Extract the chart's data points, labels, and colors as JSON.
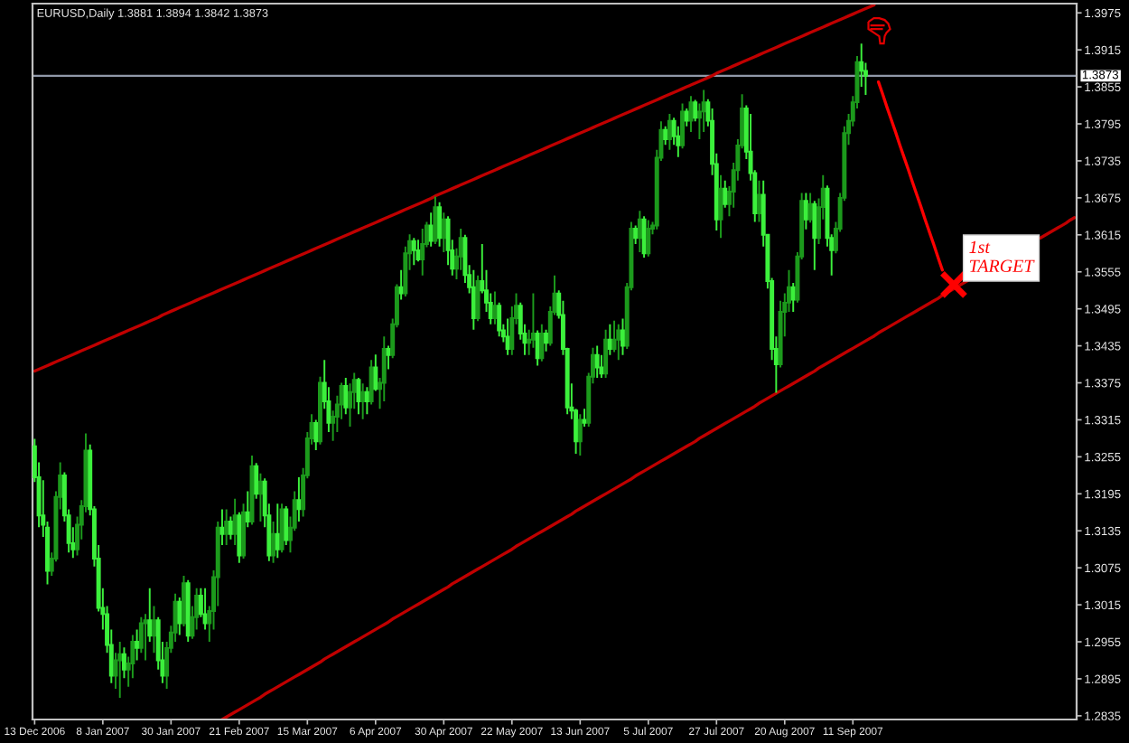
{
  "chart_data": {
    "type": "candlestick",
    "title": "EURUSD,Daily 1.3881 1.3894 1.3842 1.3873",
    "categories": [
      "13 Dec 2006",
      null,
      null,
      null,
      null,
      null,
      null,
      null,
      null,
      null,
      null,
      null,
      null,
      null,
      null,
      null,
      "8 Jan 2007",
      null,
      null,
      null,
      null,
      null,
      null,
      null,
      null,
      null,
      null,
      null,
      null,
      null,
      null,
      null,
      "30 Jan 2007",
      null,
      null,
      null,
      null,
      null,
      null,
      null,
      null,
      null,
      null,
      null,
      null,
      null,
      null,
      null,
      "21 Feb 2007",
      null,
      null,
      null,
      null,
      null,
      null,
      null,
      null,
      null,
      null,
      null,
      null,
      null,
      null,
      null,
      "15 Mar 2007",
      null,
      null,
      null,
      null,
      null,
      null,
      null,
      null,
      null,
      null,
      null,
      null,
      null,
      null,
      null,
      "6 Apr 2007",
      null,
      null,
      null,
      null,
      null,
      null,
      null,
      null,
      null,
      null,
      null,
      null,
      null,
      null,
      null,
      "30 Apr 2007",
      null,
      null,
      null,
      null,
      null,
      null,
      null,
      null,
      null,
      null,
      null,
      null,
      null,
      null,
      null,
      "22 May 2007",
      null,
      null,
      null,
      null,
      null,
      null,
      null,
      null,
      null,
      null,
      null,
      null,
      null,
      null,
      null,
      "13 Jun 2007",
      null,
      null,
      null,
      null,
      null,
      null,
      null,
      null,
      null,
      null,
      null,
      null,
      null,
      null,
      null,
      "5 Jul 2007",
      null,
      null,
      null,
      null,
      null,
      null,
      null,
      null,
      null,
      null,
      null,
      null,
      null,
      null,
      null,
      "27 Jul 2007",
      null,
      null,
      null,
      null,
      null,
      null,
      null,
      null,
      null,
      null,
      null,
      null,
      null,
      null,
      null,
      "20 Aug 2007",
      null,
      null,
      null,
      null,
      null,
      null,
      null,
      null,
      null,
      null,
      null,
      null,
      null,
      null,
      null,
      "11 Sep 2007",
      null,
      null,
      null,
      null,
      null,
      null,
      null,
      null,
      null,
      null,
      null,
      null,
      null,
      null,
      null,
      null,
      null,
      null,
      null,
      null,
      null,
      null,
      null,
      null,
      null,
      null,
      null,
      null,
      null,
      null,
      null,
      null,
      null,
      null,
      null,
      null,
      null,
      null,
      null,
      null,
      null,
      null,
      null,
      null,
      null,
      null,
      null,
      null,
      null,
      null,
      null,
      null
    ],
    "ohlc": [
      [
        1.3272,
        1.3284,
        1.3214,
        1.3222
      ],
      [
        1.3222,
        1.3246,
        1.3141,
        1.316
      ],
      [
        1.316,
        1.3217,
        1.3125,
        1.3145
      ],
      [
        1.314,
        1.315,
        1.3048,
        1.307
      ],
      [
        1.307,
        1.31,
        1.3062,
        1.309
      ],
      [
        1.309,
        1.3199,
        1.3085,
        1.319
      ],
      [
        1.319,
        1.3246,
        1.317,
        1.3225
      ],
      [
        1.3225,
        1.323,
        1.315,
        1.316
      ],
      [
        1.316,
        1.317,
        1.31,
        1.3115
      ],
      [
        1.3115,
        1.3141,
        1.3091,
        1.3105
      ],
      [
        1.3105,
        1.3158,
        1.3095,
        1.3145
      ],
      [
        1.3145,
        1.3185,
        1.3121,
        1.3175
      ],
      [
        1.3175,
        1.3293,
        1.3165,
        1.3265
      ],
      [
        1.3265,
        1.3275,
        1.316,
        1.317
      ],
      [
        1.317,
        1.3175,
        1.3077,
        1.309
      ],
      [
        1.309,
        1.3112,
        1.3004,
        1.301
      ],
      [
        1.301,
        1.3042,
        1.2975,
        1.3
      ],
      [
        1.3,
        1.3013,
        1.2937,
        1.295
      ],
      [
        1.295,
        1.2975,
        1.2888,
        1.29
      ],
      [
        1.29,
        1.2937,
        1.2879,
        1.2925
      ],
      [
        1.2925,
        1.2955,
        1.2864,
        1.2935
      ],
      [
        1.2935,
        1.2946,
        1.2896,
        1.291
      ],
      [
        1.291,
        1.2931,
        1.2882,
        1.292
      ],
      [
        1.292,
        1.2966,
        1.2896,
        1.2955
      ],
      [
        1.2955,
        1.2975,
        1.2925,
        1.2945
      ],
      [
        1.2945,
        1.2995,
        1.2937,
        1.2985
      ],
      [
        1.2985,
        1.3,
        1.2925,
        1.299
      ],
      [
        1.299,
        1.3042,
        1.2955,
        1.2965
      ],
      [
        1.2965,
        1.3013,
        1.2937,
        1.299
      ],
      [
        1.299,
        1.2995,
        1.291,
        1.2925
      ],
      [
        1.2925,
        1.2955,
        1.2888,
        1.29
      ],
      [
        1.29,
        1.2955,
        1.2879,
        1.2945
      ],
      [
        1.2945,
        1.2981,
        1.2937,
        1.297
      ],
      [
        1.297,
        1.3033,
        1.2955,
        1.302
      ],
      [
        1.302,
        1.3027,
        1.2966,
        1.2985
      ],
      [
        1.2985,
        1.3062,
        1.298,
        1.305
      ],
      [
        1.305,
        1.3055,
        1.2955,
        1.2965
      ],
      [
        1.2965,
        1.3013,
        1.296,
        1.2995
      ],
      [
        1.2995,
        1.3042,
        1.2975,
        1.303
      ],
      [
        1.303,
        1.3042,
        1.2995,
        1.3
      ],
      [
        1.3,
        1.3042,
        1.2975,
        1.2985
      ],
      [
        1.2985,
        1.3013,
        1.2955,
        1.3005
      ],
      [
        1.3005,
        1.3071,
        1.2975,
        1.306
      ],
      [
        1.306,
        1.315,
        1.3013,
        1.314
      ],
      [
        1.314,
        1.317,
        1.3112,
        1.313
      ],
      [
        1.313,
        1.317,
        1.3112,
        1.315
      ],
      [
        1.315,
        1.3158,
        1.3121,
        1.313
      ],
      [
        1.313,
        1.3187,
        1.3112,
        1.316
      ],
      [
        1.316,
        1.3165,
        1.3083,
        1.3095
      ],
      [
        1.3095,
        1.3179,
        1.309,
        1.3165
      ],
      [
        1.3165,
        1.3199,
        1.3141,
        1.315
      ],
      [
        1.315,
        1.3257,
        1.3145,
        1.324
      ],
      [
        1.324,
        1.3245,
        1.3187,
        1.3195
      ],
      [
        1.3195,
        1.3228,
        1.315,
        1.3215
      ],
      [
        1.3215,
        1.322,
        1.3141,
        1.316
      ],
      [
        1.316,
        1.3179,
        1.3086,
        1.3095
      ],
      [
        1.3095,
        1.315,
        1.3083,
        1.313
      ],
      [
        1.313,
        1.3179,
        1.3091,
        1.3105
      ],
      [
        1.3105,
        1.3179,
        1.31,
        1.317
      ],
      [
        1.317,
        1.3175,
        1.3112,
        1.312
      ],
      [
        1.312,
        1.3158,
        1.31,
        1.314
      ],
      [
        1.314,
        1.3199,
        1.3135,
        1.3185
      ],
      [
        1.3185,
        1.3222,
        1.315,
        1.317
      ],
      [
        1.317,
        1.3237,
        1.3158,
        1.3225
      ],
      [
        1.3225,
        1.3295,
        1.322,
        1.3285
      ],
      [
        1.3285,
        1.3324,
        1.3275,
        1.331
      ],
      [
        1.331,
        1.3315,
        1.3266,
        1.328
      ],
      [
        1.328,
        1.3385,
        1.3275,
        1.3375
      ],
      [
        1.3375,
        1.3412,
        1.3333,
        1.3345
      ],
      [
        1.3345,
        1.3368,
        1.3295,
        1.331
      ],
      [
        1.331,
        1.333,
        1.3281,
        1.332
      ],
      [
        1.332,
        1.3354,
        1.3295,
        1.334
      ],
      [
        1.334,
        1.3375,
        1.3316,
        1.337
      ],
      [
        1.337,
        1.3383,
        1.3324,
        1.3335
      ],
      [
        1.3335,
        1.3374,
        1.3304,
        1.336
      ],
      [
        1.336,
        1.3391,
        1.3333,
        1.338
      ],
      [
        1.338,
        1.3383,
        1.3324,
        1.3345
      ],
      [
        1.3345,
        1.3374,
        1.3316,
        1.336
      ],
      [
        1.336,
        1.3368,
        1.3324,
        1.3345
      ],
      [
        1.3345,
        1.3412,
        1.334,
        1.34
      ],
      [
        1.34,
        1.3421,
        1.3362,
        1.3365
      ],
      [
        1.3365,
        1.3383,
        1.3333,
        1.3375
      ],
      [
        1.3375,
        1.345,
        1.3345,
        1.343
      ],
      [
        1.343,
        1.3435,
        1.3397,
        1.342
      ],
      [
        1.342,
        1.3479,
        1.3415,
        1.347
      ],
      [
        1.347,
        1.3535,
        1.3465,
        1.353
      ],
      [
        1.353,
        1.3558,
        1.351,
        1.352
      ],
      [
        1.352,
        1.3596,
        1.3515,
        1.3585
      ],
      [
        1.3585,
        1.3616,
        1.3558,
        1.3605
      ],
      [
        1.3605,
        1.361,
        1.3566,
        1.359
      ],
      [
        1.359,
        1.3607,
        1.3572,
        1.3575
      ],
      [
        1.3575,
        1.3625,
        1.3549,
        1.36
      ],
      [
        1.36,
        1.3636,
        1.3595,
        1.363
      ],
      [
        1.363,
        1.3651,
        1.3596,
        1.3605
      ],
      [
        1.3605,
        1.3677,
        1.36,
        1.366
      ],
      [
        1.366,
        1.3668,
        1.3596,
        1.361
      ],
      [
        1.361,
        1.3651,
        1.3587,
        1.364
      ],
      [
        1.364,
        1.3645,
        1.3566,
        1.359
      ],
      [
        1.359,
        1.3607,
        1.3549,
        1.356
      ],
      [
        1.356,
        1.3593,
        1.3543,
        1.358
      ],
      [
        1.358,
        1.3625,
        1.3558,
        1.361
      ],
      [
        1.361,
        1.3615,
        1.3537,
        1.355
      ],
      [
        1.355,
        1.3566,
        1.352,
        1.353
      ],
      [
        1.353,
        1.3558,
        1.3461,
        1.348
      ],
      [
        1.348,
        1.3549,
        1.3475,
        1.354
      ],
      [
        1.354,
        1.36,
        1.352,
        1.3525
      ],
      [
        1.3525,
        1.3558,
        1.349,
        1.3505
      ],
      [
        1.3505,
        1.352,
        1.347,
        1.348
      ],
      [
        1.348,
        1.3523,
        1.347,
        1.35
      ],
      [
        1.35,
        1.3505,
        1.345,
        1.346
      ],
      [
        1.346,
        1.347,
        1.3441,
        1.345
      ],
      [
        1.345,
        1.3479,
        1.342,
        1.343
      ],
      [
        1.343,
        1.3499,
        1.342,
        1.348
      ],
      [
        1.348,
        1.352,
        1.347,
        1.35
      ],
      [
        1.35,
        1.3505,
        1.3445,
        1.3455
      ],
      [
        1.3455,
        1.347,
        1.342,
        1.344
      ],
      [
        1.344,
        1.3461,
        1.342,
        1.3445
      ],
      [
        1.3445,
        1.352,
        1.3432,
        1.3455
      ],
      [
        1.3455,
        1.346,
        1.3403,
        1.3415
      ],
      [
        1.3415,
        1.347,
        1.341,
        1.3455
      ],
      [
        1.3455,
        1.3461,
        1.3426,
        1.344
      ],
      [
        1.344,
        1.3499,
        1.3435,
        1.349
      ],
      [
        1.349,
        1.3549,
        1.3485,
        1.352
      ],
      [
        1.352,
        1.3525,
        1.3479,
        1.3485
      ],
      [
        1.3485,
        1.3508,
        1.342,
        1.343
      ],
      [
        1.343,
        1.3432,
        1.3324,
        1.3335
      ],
      [
        1.3335,
        1.3374,
        1.3316,
        1.333
      ],
      [
        1.333,
        1.3333,
        1.326,
        1.328
      ],
      [
        1.328,
        1.3324,
        1.3257,
        1.3315
      ],
      [
        1.3315,
        1.3333,
        1.3304,
        1.331
      ],
      [
        1.331,
        1.3391,
        1.3304,
        1.3385
      ],
      [
        1.3385,
        1.3432,
        1.3374,
        1.342
      ],
      [
        1.342,
        1.3435,
        1.3383,
        1.34
      ],
      [
        1.34,
        1.342,
        1.3383,
        1.339
      ],
      [
        1.339,
        1.3461,
        1.3383,
        1.3445
      ],
      [
        1.3445,
        1.347,
        1.342,
        1.343
      ],
      [
        1.343,
        1.3476,
        1.3425,
        1.3445
      ],
      [
        1.3445,
        1.347,
        1.3412,
        1.346
      ],
      [
        1.346,
        1.3479,
        1.342,
        1.3435
      ],
      [
        1.3435,
        1.3537,
        1.343,
        1.353
      ],
      [
        1.353,
        1.3636,
        1.3525,
        1.3625
      ],
      [
        1.3625,
        1.363,
        1.36,
        1.361
      ],
      [
        1.361,
        1.3654,
        1.3587,
        1.364
      ],
      [
        1.364,
        1.3645,
        1.3578,
        1.3585
      ],
      [
        1.3585,
        1.3639,
        1.358,
        1.3625
      ],
      [
        1.3625,
        1.3636,
        1.3616,
        1.363
      ],
      [
        1.363,
        1.3753,
        1.3624,
        1.374
      ],
      [
        1.374,
        1.3799,
        1.3735,
        1.3785
      ],
      [
        1.3785,
        1.3791,
        1.3761,
        1.377
      ],
      [
        1.377,
        1.3811,
        1.3753,
        1.38
      ],
      [
        1.38,
        1.3805,
        1.3761,
        1.3775
      ],
      [
        1.3775,
        1.3791,
        1.3741,
        1.376
      ],
      [
        1.376,
        1.3828,
        1.3755,
        1.3815
      ],
      [
        1.3815,
        1.382,
        1.3791,
        1.38
      ],
      [
        1.38,
        1.384,
        1.3782,
        1.383
      ],
      [
        1.383,
        1.3834,
        1.3799,
        1.3805
      ],
      [
        1.3805,
        1.3828,
        1.377,
        1.3815
      ],
      [
        1.3815,
        1.385,
        1.3782,
        1.383
      ],
      [
        1.383,
        1.3835,
        1.3791,
        1.38
      ],
      [
        1.38,
        1.382,
        1.3712,
        1.373
      ],
      [
        1.373,
        1.3747,
        1.3622,
        1.364
      ],
      [
        1.364,
        1.3712,
        1.361,
        1.369
      ],
      [
        1.369,
        1.3703,
        1.3659,
        1.3665
      ],
      [
        1.3665,
        1.3694,
        1.3645,
        1.3685
      ],
      [
        1.3685,
        1.3732,
        1.3659,
        1.372
      ],
      [
        1.372,
        1.377,
        1.3703,
        1.376
      ],
      [
        1.376,
        1.3843,
        1.3755,
        1.382
      ],
      [
        1.382,
        1.3825,
        1.3738,
        1.375
      ],
      [
        1.375,
        1.3811,
        1.3703,
        1.3715
      ],
      [
        1.3715,
        1.372,
        1.3636,
        1.365
      ],
      [
        1.365,
        1.3703,
        1.3636,
        1.368
      ],
      [
        1.368,
        1.3703,
        1.3596,
        1.3615
      ],
      [
        1.3615,
        1.3616,
        1.3528,
        1.354
      ],
      [
        1.354,
        1.3545,
        1.3412,
        1.343
      ],
      [
        1.343,
        1.345,
        1.3359,
        1.3405
      ],
      [
        1.3405,
        1.3508,
        1.34,
        1.349
      ],
      [
        1.349,
        1.352,
        1.345,
        1.3505
      ],
      [
        1.3505,
        1.3558,
        1.349,
        1.353
      ],
      [
        1.353,
        1.3537,
        1.349,
        1.351
      ],
      [
        1.351,
        1.3587,
        1.3505,
        1.358
      ],
      [
        1.358,
        1.3683,
        1.3575,
        1.367
      ],
      [
        1.367,
        1.3683,
        1.3624,
        1.364
      ],
      [
        1.364,
        1.3683,
        1.3635,
        1.3665
      ],
      [
        1.3665,
        1.367,
        1.3558,
        1.361
      ],
      [
        1.361,
        1.3674,
        1.36,
        1.366
      ],
      [
        1.366,
        1.3712,
        1.364,
        1.369
      ],
      [
        1.369,
        1.3695,
        1.3596,
        1.361
      ],
      [
        1.361,
        1.3616,
        1.3549,
        1.359
      ],
      [
        1.359,
        1.3636,
        1.3585,
        1.3625
      ],
      [
        1.3625,
        1.3683,
        1.362,
        1.3675
      ],
      [
        1.3675,
        1.3791,
        1.367,
        1.378
      ],
      [
        1.378,
        1.3811,
        1.3761,
        1.38
      ],
      [
        1.38,
        1.384,
        1.3791,
        1.383
      ],
      [
        1.383,
        1.3905,
        1.382,
        1.3895
      ],
      [
        1.3895,
        1.3925,
        1.3855,
        1.3881
      ],
      [
        1.3881,
        1.3894,
        1.3842,
        1.3873
      ],
      null,
      null,
      null,
      null,
      null,
      null,
      null,
      null,
      null,
      null,
      null,
      null,
      null,
      null,
      null,
      null,
      null,
      null,
      null,
      null,
      null,
      null,
      null,
      null,
      null,
      null,
      null,
      null,
      null,
      null,
      null,
      null,
      null,
      null,
      null,
      null,
      null,
      null,
      null,
      null,
      null,
      null,
      null,
      null,
      null,
      null,
      null,
      null,
      null
    ],
    "colors": [
      "#3cf03c",
      "#3cf03c",
      "#3cf03c",
      "#3cf03c",
      "#1c9a1c",
      "#1c9a1c",
      "#1c9a1c",
      "#3cf03c",
      "#3cf03c",
      "#3cf03c",
      "#1c9a1c",
      "#1c9a1c",
      "#1c9a1c",
      "#3cf03c",
      "#3cf03c",
      "#3cf03c",
      "#3cf03c",
      "#3cf03c",
      "#3cf03c",
      "#1c9a1c",
      "#1c9a1c",
      "#3cf03c",
      "#1c9a1c",
      "#1c9a1c",
      "#3cf03c",
      "#1c9a1c",
      "#1c9a1c",
      "#3cf03c",
      "#1c9a1c",
      "#3cf03c",
      "#3cf03c",
      "#1c9a1c",
      "#1c9a1c",
      "#1c9a1c",
      "#3cf03c",
      "#1c9a1c",
      "#3cf03c",
      "#1c9a1c",
      "#1c9a1c",
      "#3cf03c",
      "#3cf03c",
      "#1c9a1c",
      "#1c9a1c",
      "#1c9a1c",
      "#3cf03c",
      "#1c9a1c",
      "#3cf03c",
      "#1c9a1c",
      "#3cf03c",
      "#1c9a1c",
      "#3cf03c",
      "#1c9a1c",
      "#3cf03c",
      "#1c9a1c",
      "#3cf03c",
      "#3cf03c",
      "#1c9a1c",
      "#3cf03c",
      "#1c9a1c",
      "#3cf03c",
      "#1c9a1c",
      "#1c9a1c",
      "#3cf03c",
      "#1c9a1c",
      "#1c9a1c",
      "#1c9a1c",
      "#3cf03c",
      "#1c9a1c",
      "#3cf03c",
      "#3cf03c",
      "#1c9a1c",
      "#1c9a1c",
      "#1c9a1c",
      "#3cf03c",
      "#1c9a1c",
      "#1c9a1c",
      "#3cf03c",
      "#1c9a1c",
      "#3cf03c",
      "#1c9a1c",
      "#3cf03c",
      "#1c9a1c",
      "#1c9a1c",
      "#3cf03c",
      "#1c9a1c",
      "#1c9a1c",
      "#3cf03c",
      "#1c9a1c",
      "#1c9a1c",
      "#3cf03c",
      "#3cf03c",
      "#1c9a1c",
      "#1c9a1c",
      "#3cf03c",
      "#1c9a1c",
      "#3cf03c",
      "#1c9a1c",
      "#3cf03c",
      "#3cf03c",
      "#1c9a1c",
      "#1c9a1c",
      "#3cf03c",
      "#3cf03c",
      "#3cf03c",
      "#1c9a1c",
      "#3cf03c",
      "#3cf03c",
      "#3cf03c",
      "#1c9a1c",
      "#3cf03c",
      "#3cf03c",
      "#3cf03c",
      "#1c9a1c",
      "#1c9a1c",
      "#3cf03c",
      "#3cf03c",
      "#1c9a1c",
      "#1c9a1c",
      "#3cf03c",
      "#1c9a1c",
      "#3cf03c",
      "#1c9a1c",
      "#1c9a1c",
      "#3cf03c",
      "#3cf03c",
      "#3cf03c",
      "#3cf03c",
      "#3cf03c",
      "#1c9a1c",
      "#3cf03c",
      "#1c9a1c",
      "#1c9a1c",
      "#3cf03c",
      "#3cf03c",
      "#1c9a1c",
      "#3cf03c",
      "#1c9a1c",
      "#1c9a1c",
      "#3cf03c",
      "#1c9a1c",
      "#1c9a1c",
      "#3cf03c",
      "#1c9a1c",
      "#3cf03c",
      "#1c9a1c",
      "#1c9a1c",
      "#1c9a1c",
      "#1c9a1c",
      "#3cf03c",
      "#1c9a1c",
      "#3cf03c",
      "#3cf03c",
      "#1c9a1c",
      "#3cf03c",
      "#1c9a1c",
      "#3cf03c",
      "#1c9a1c",
      "#1c9a1c",
      "#3cf03c",
      "#3cf03c",
      "#3cf03c",
      "#1c9a1c",
      "#3cf03c",
      "#1c9a1c",
      "#1c9a1c",
      "#1c9a1c",
      "#1c9a1c",
      "#3cf03c",
      "#3cf03c",
      "#3cf03c",
      "#1c9a1c",
      "#3cf03c",
      "#3cf03c",
      "#3cf03c",
      "#3cf03c",
      "#1c9a1c",
      "#1c9a1c",
      "#1c9a1c",
      "#3cf03c",
      "#1c9a1c",
      "#1c9a1c",
      "#3cf03c",
      "#1c9a1c",
      "#3cf03c",
      "#1c9a1c",
      "#1c9a1c",
      "#3cf03c",
      "#3cf03c",
      "#1c9a1c",
      "#1c9a1c",
      "#1c9a1c",
      "#1c9a1c",
      "#1c9a1c",
      "#1c9a1c",
      "#3cf03c",
      "#3cf03c",
      null,
      null,
      null,
      null,
      null,
      null,
      null,
      null,
      null,
      null,
      null,
      null,
      null,
      null,
      null,
      null,
      null,
      null,
      null,
      null,
      null,
      null,
      null,
      null,
      null,
      null,
      null,
      null,
      null,
      null,
      null,
      null,
      null,
      null,
      null,
      null,
      null,
      null,
      null,
      null,
      null,
      null,
      null,
      null,
      null,
      null,
      null,
      null,
      null
    ],
    "series": [
      {
        "type": "line",
        "color": "#c00000",
        "values": [
          1.3394,
          1.3397,
          1.34,
          1.3403,
          1.3406,
          1.3409,
          1.3412,
          1.3415,
          1.3418,
          1.3421,
          1.3424,
          1.3427,
          1.343,
          1.3433,
          1.3436,
          1.3439,
          1.3442,
          1.3445,
          1.3448,
          1.3451,
          1.3454,
          1.3457,
          1.346,
          1.3463,
          1.3466,
          1.3469,
          1.3472,
          1.3475,
          1.3478,
          1.3481,
          1.3485,
          1.3488,
          1.3491,
          1.3494,
          1.3497,
          1.35,
          1.3503,
          1.3506,
          1.3509,
          1.3512,
          1.3515,
          1.3518,
          1.3521,
          1.3524,
          1.3527,
          1.353,
          1.3533,
          1.3536,
          1.3539,
          1.3542,
          1.3545,
          1.3548,
          1.3551,
          1.3554,
          1.3557,
          1.356,
          1.3563,
          1.3566,
          1.3569,
          1.3572,
          1.3575,
          1.3578,
          1.3581,
          1.3584,
          1.3587,
          1.359,
          1.3593,
          1.3596,
          1.3599,
          1.3602,
          1.3605,
          1.3608,
          1.3611,
          1.3614,
          1.3617,
          1.362,
          1.3623,
          1.3626,
          1.3629,
          1.3632,
          1.3635,
          1.3638,
          1.3641,
          1.3644,
          1.3647,
          1.365,
          1.3653,
          1.3656,
          1.3659,
          1.3662,
          1.3665,
          1.3668,
          1.3671,
          1.3674,
          1.3678,
          1.3681,
          1.3684,
          1.3687,
          1.369,
          1.3693,
          1.3696,
          1.3699,
          1.3702,
          1.3705,
          1.3708,
          1.3711,
          1.3714,
          1.3717,
          1.372,
          1.3723,
          1.3726,
          1.3729,
          1.3732,
          1.3735,
          1.3738,
          1.3741,
          1.3744,
          1.3747,
          1.375,
          1.3753,
          1.3756,
          1.3759,
          1.3762,
          1.3765,
          1.3768,
          1.3771,
          1.3774,
          1.3777,
          1.378,
          1.3783,
          1.3786,
          1.3789,
          1.3792,
          1.3795,
          1.3798,
          1.3801,
          1.3804,
          1.3807,
          1.381,
          1.3813,
          1.3816,
          1.3819,
          1.3822,
          1.3825,
          1.3828,
          1.3831,
          1.3834,
          1.3837,
          1.384,
          1.3843,
          1.3846,
          1.3849,
          1.3852,
          1.3855,
          1.3858,
          1.3861,
          1.3864,
          1.3867,
          1.387,
          1.3873,
          1.3877,
          1.388,
          1.3883,
          1.3886,
          1.3889,
          1.3892,
          1.3895,
          1.3898,
          1.3901,
          1.3904,
          1.3907,
          1.391,
          1.3913,
          1.3916,
          1.3919,
          1.3922,
          1.3925,
          1.3928,
          1.3931,
          1.3934,
          1.3937,
          1.394,
          1.3943,
          1.3946,
          1.3949,
          1.3952,
          1.3955,
          1.3958,
          1.3961,
          1.3964,
          1.3967,
          1.397,
          1.3973,
          1.3976,
          1.3979,
          1.3982,
          1.3985,
          1.3988,
          null,
          null,
          null,
          null,
          null,
          null,
          null,
          null,
          null,
          null,
          null,
          null,
          null,
          null,
          null,
          null,
          null,
          null,
          null,
          null,
          null,
          null,
          null,
          null,
          null,
          null,
          null,
          null,
          null,
          null,
          null,
          null,
          null,
          null,
          null,
          null,
          null,
          null,
          null,
          null,
          null,
          null,
          null,
          null,
          null,
          null,
          null
        ]
      },
      {
        "type": "line",
        "color": "#c00000",
        "values": [
          null,
          null,
          null,
          null,
          null,
          null,
          null,
          null,
          null,
          null,
          null,
          null,
          null,
          null,
          null,
          null,
          null,
          null,
          null,
          null,
          null,
          null,
          null,
          null,
          null,
          null,
          null,
          null,
          null,
          null,
          null,
          null,
          null,
          null,
          null,
          null,
          null,
          null,
          null,
          null,
          null,
          null,
          null,
          null,
          1.2829,
          1.2833,
          1.2837,
          1.2841,
          1.2845,
          1.2849,
          1.2853,
          1.2857,
          1.2861,
          1.2865,
          1.287,
          1.2874,
          1.2878,
          1.2882,
          1.2886,
          1.289,
          1.2894,
          1.2898,
          1.2902,
          1.2906,
          1.291,
          1.2914,
          1.2918,
          1.2922,
          1.2927,
          1.2931,
          1.2935,
          1.2939,
          1.2943,
          1.2947,
          1.2951,
          1.2955,
          1.2959,
          1.2963,
          1.2967,
          1.2971,
          1.2975,
          1.2979,
          1.2983,
          1.2987,
          1.2992,
          1.2996,
          1.3,
          1.3004,
          1.3008,
          1.3012,
          1.3016,
          1.302,
          1.3024,
          1.3028,
          1.3032,
          1.3036,
          1.304,
          1.3044,
          1.3049,
          1.3053,
          1.3057,
          1.3061,
          1.3065,
          1.3069,
          1.3073,
          1.3077,
          1.3081,
          1.3085,
          1.3089,
          1.3093,
          1.3097,
          1.3101,
          1.3105,
          1.311,
          1.3114,
          1.3118,
          1.3122,
          1.3126,
          1.313,
          1.3134,
          1.3138,
          1.3142,
          1.3146,
          1.315,
          1.3154,
          1.3158,
          1.3162,
          1.3167,
          1.3171,
          1.3175,
          1.3179,
          1.3183,
          1.3187,
          1.3191,
          1.3195,
          1.3199,
          1.3203,
          1.3207,
          1.3211,
          1.3215,
          1.3219,
          1.3224,
          1.3228,
          1.3232,
          1.3236,
          1.324,
          1.3244,
          1.3248,
          1.3252,
          1.3256,
          1.326,
          1.3264,
          1.3268,
          1.3272,
          1.3276,
          1.328,
          1.3285,
          1.3289,
          1.3293,
          1.3297,
          1.3301,
          1.3305,
          1.3309,
          1.3313,
          1.3317,
          1.3321,
          1.3325,
          1.3329,
          1.3333,
          1.3337,
          1.3342,
          1.3346,
          1.335,
          1.3354,
          1.3358,
          1.3362,
          1.3366,
          1.337,
          1.3374,
          1.3378,
          1.3382,
          1.3386,
          1.339,
          1.3394,
          1.3399,
          1.3403,
          1.3407,
          1.3411,
          1.3415,
          1.3419,
          1.3423,
          1.3427,
          1.3431,
          1.3435,
          1.3439,
          1.3443,
          1.3447,
          1.3451,
          1.3456,
          1.346,
          1.3464,
          1.3468,
          1.3472,
          1.3476,
          1.348,
          1.3484,
          1.3488,
          1.3492,
          1.3496,
          1.35,
          1.3504,
          1.3508,
          1.3512,
          1.3517,
          1.3521,
          1.3525,
          1.3529,
          1.3533,
          1.3537,
          1.3541,
          null,
          null,
          null,
          null,
          null,
          null,
          null,
          null,
          null,
          null,
          null,
          null,
          null,
          null,
          null,
          null,
          1.361,
          1.3614,
          1.3618,
          1.3622,
          1.3626,
          1.363,
          1.3634,
          1.3639,
          1.3643
        ]
      },
      {
        "type": "line",
        "color": "#ff0000",
        "values": [
          null,
          null,
          null,
          null,
          null,
          null,
          null,
          null,
          null,
          null,
          null,
          null,
          null,
          null,
          null,
          null,
          null,
          null,
          null,
          null,
          null,
          null,
          null,
          null,
          null,
          null,
          null,
          null,
          null,
          null,
          null,
          null,
          null,
          null,
          null,
          null,
          null,
          null,
          null,
          null,
          null,
          null,
          null,
          null,
          null,
          null,
          null,
          null,
          null,
          null,
          null,
          null,
          null,
          null,
          null,
          null,
          null,
          null,
          null,
          null,
          null,
          null,
          null,
          null,
          null,
          null,
          null,
          null,
          null,
          null,
          null,
          null,
          null,
          null,
          null,
          null,
          null,
          null,
          null,
          null,
          null,
          null,
          null,
          null,
          null,
          null,
          null,
          null,
          null,
          null,
          null,
          null,
          null,
          null,
          null,
          null,
          null,
          null,
          null,
          null,
          null,
          null,
          null,
          null,
          null,
          null,
          null,
          null,
          null,
          null,
          null,
          null,
          null,
          null,
          null,
          null,
          null,
          null,
          null,
          null,
          null,
          null,
          null,
          null,
          null,
          null,
          null,
          null,
          null,
          null,
          null,
          null,
          null,
          null,
          null,
          null,
          null,
          null,
          null,
          null,
          null,
          null,
          null,
          null,
          null,
          null,
          null,
          null,
          null,
          null,
          null,
          null,
          null,
          null,
          null,
          null,
          null,
          null,
          null,
          null,
          null,
          null,
          null,
          null,
          null,
          null,
          null,
          null,
          null,
          null,
          null,
          null,
          null,
          null,
          null,
          null,
          null,
          null,
          null,
          null,
          null,
          null,
          null,
          null,
          null,
          null,
          null,
          null,
          null,
          null,
          null,
          null,
          null,
          null,
          null,
          null,
          null,
          null,
          1.3863,
          1.3843,
          1.3822,
          1.3802,
          1.3782,
          1.3761,
          1.3741,
          1.3721,
          1.37,
          1.368,
          1.366,
          1.3639,
          1.3619,
          1.3599,
          1.3578,
          1.3558,
          null,
          null,
          null,
          null,
          null,
          null,
          null,
          null,
          null,
          null,
          null,
          null,
          null,
          null,
          null,
          null,
          null,
          null,
          null,
          null,
          null,
          null,
          null,
          null,
          null,
          null,
          null,
          null,
          null,
          null,
          null
        ]
      }
    ],
    "annotations": [
      "1st\nTARGET"
    ],
    "ref_lines": [
      {
        "axis": "y",
        "value": 1.3873,
        "label": "1.3873",
        "color": "#9098a8"
      }
    ],
    "ylim": [
      1.2829,
      1.399
    ],
    "yticks": [
      1.2835,
      1.2895,
      1.2955,
      1.3015,
      1.3075,
      1.3135,
      1.3195,
      1.3255,
      1.3315,
      1.3375,
      1.3435,
      1.3495,
      1.3555,
      1.3615,
      1.3675,
      1.3735,
      1.3795,
      1.3855,
      1.3915,
      1.3975
    ]
  }
}
